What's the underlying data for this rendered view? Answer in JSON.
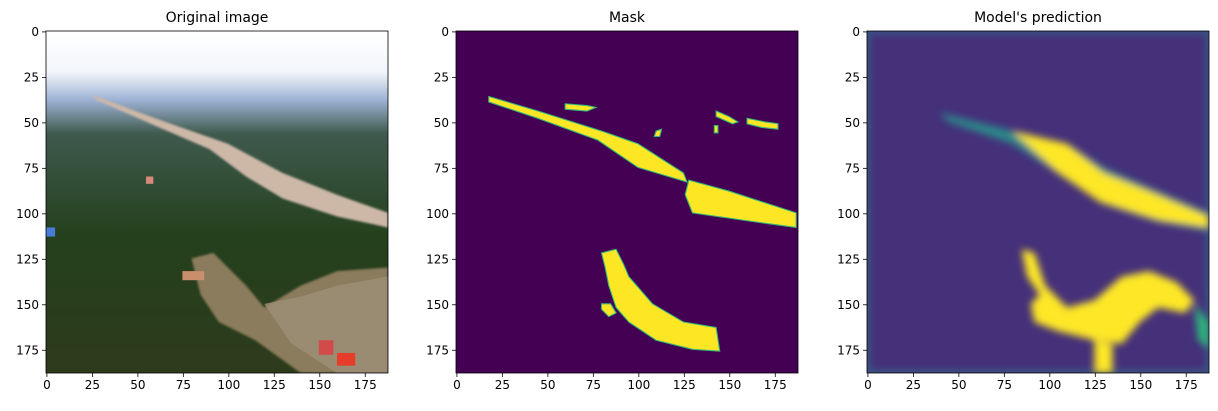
{
  "chart_data": [
    {
      "type": "image",
      "title": "Original image",
      "xlim": [
        -0.5,
        187.5
      ],
      "ylim": [
        187.5,
        -0.5
      ],
      "xticks": [
        0,
        25,
        50,
        75,
        100,
        125,
        150,
        175
      ],
      "yticks": [
        0,
        25,
        50,
        75,
        100,
        125,
        150,
        175
      ]
    },
    {
      "type": "image",
      "title": "Mask",
      "xlim": [
        -0.5,
        187.5
      ],
      "ylim": [
        187.5,
        -0.5
      ],
      "xticks": [
        0,
        25,
        50,
        75,
        100,
        125,
        150,
        175
      ],
      "yticks": [
        0,
        25,
        50,
        75,
        100,
        125,
        150,
        175
      ]
    },
    {
      "type": "image",
      "title": "Model's prediction",
      "xlim": [
        -0.5,
        187.5
      ],
      "ylim": [
        187.5,
        -0.5
      ],
      "xticks": [
        0,
        25,
        50,
        75,
        100,
        125,
        150,
        175
      ],
      "yticks": [
        0,
        25,
        50,
        75,
        100,
        125,
        150,
        175
      ]
    }
  ]
}
